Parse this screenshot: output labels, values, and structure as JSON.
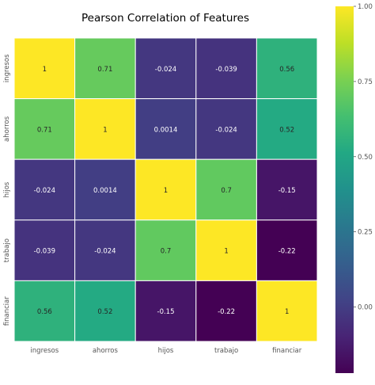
{
  "chart_data": {
    "type": "heatmap",
    "title": "Pearson Correlation of Features",
    "xlabel": "",
    "ylabel": "",
    "x_categories": [
      "ingresos",
      "ahorros",
      "hijos",
      "trabajo",
      "financiar"
    ],
    "y_categories": [
      "ingresos",
      "ahorros",
      "hijos",
      "trabajo",
      "financiar"
    ],
    "values": [
      [
        1,
        0.71,
        -0.024,
        -0.039,
        0.56
      ],
      [
        0.71,
        1,
        0.0014,
        -0.024,
        0.52
      ],
      [
        -0.024,
        0.0014,
        1,
        0.7,
        -0.15
      ],
      [
        -0.039,
        -0.024,
        0.7,
        1,
        -0.22
      ],
      [
        0.56,
        0.52,
        -0.15,
        -0.22,
        1
      ]
    ],
    "cell_labels": [
      [
        "1",
        "0.71",
        "-0.024",
        "-0.039",
        "0.56"
      ],
      [
        "0.71",
        "1",
        "0.0014",
        "-0.024",
        "0.52"
      ],
      [
        "-0.024",
        "0.0014",
        "1",
        "0.7",
        "-0.15"
      ],
      [
        "-0.039",
        "-0.024",
        "0.7",
        "1",
        "-0.22"
      ],
      [
        "0.56",
        "0.52",
        "-0.15",
        "-0.22",
        "1"
      ]
    ],
    "colormap": "viridis",
    "color_range": [
      -0.22,
      1.0
    ],
    "colorbar_ticks": [
      "1.00",
      "0.75",
      "0.50",
      "0.25",
      "0.00"
    ],
    "colorbar_tick_values": [
      1.0,
      0.75,
      0.5,
      0.25,
      0.0
    ],
    "grid": true,
    "grid_color": "#ffffff"
  }
}
